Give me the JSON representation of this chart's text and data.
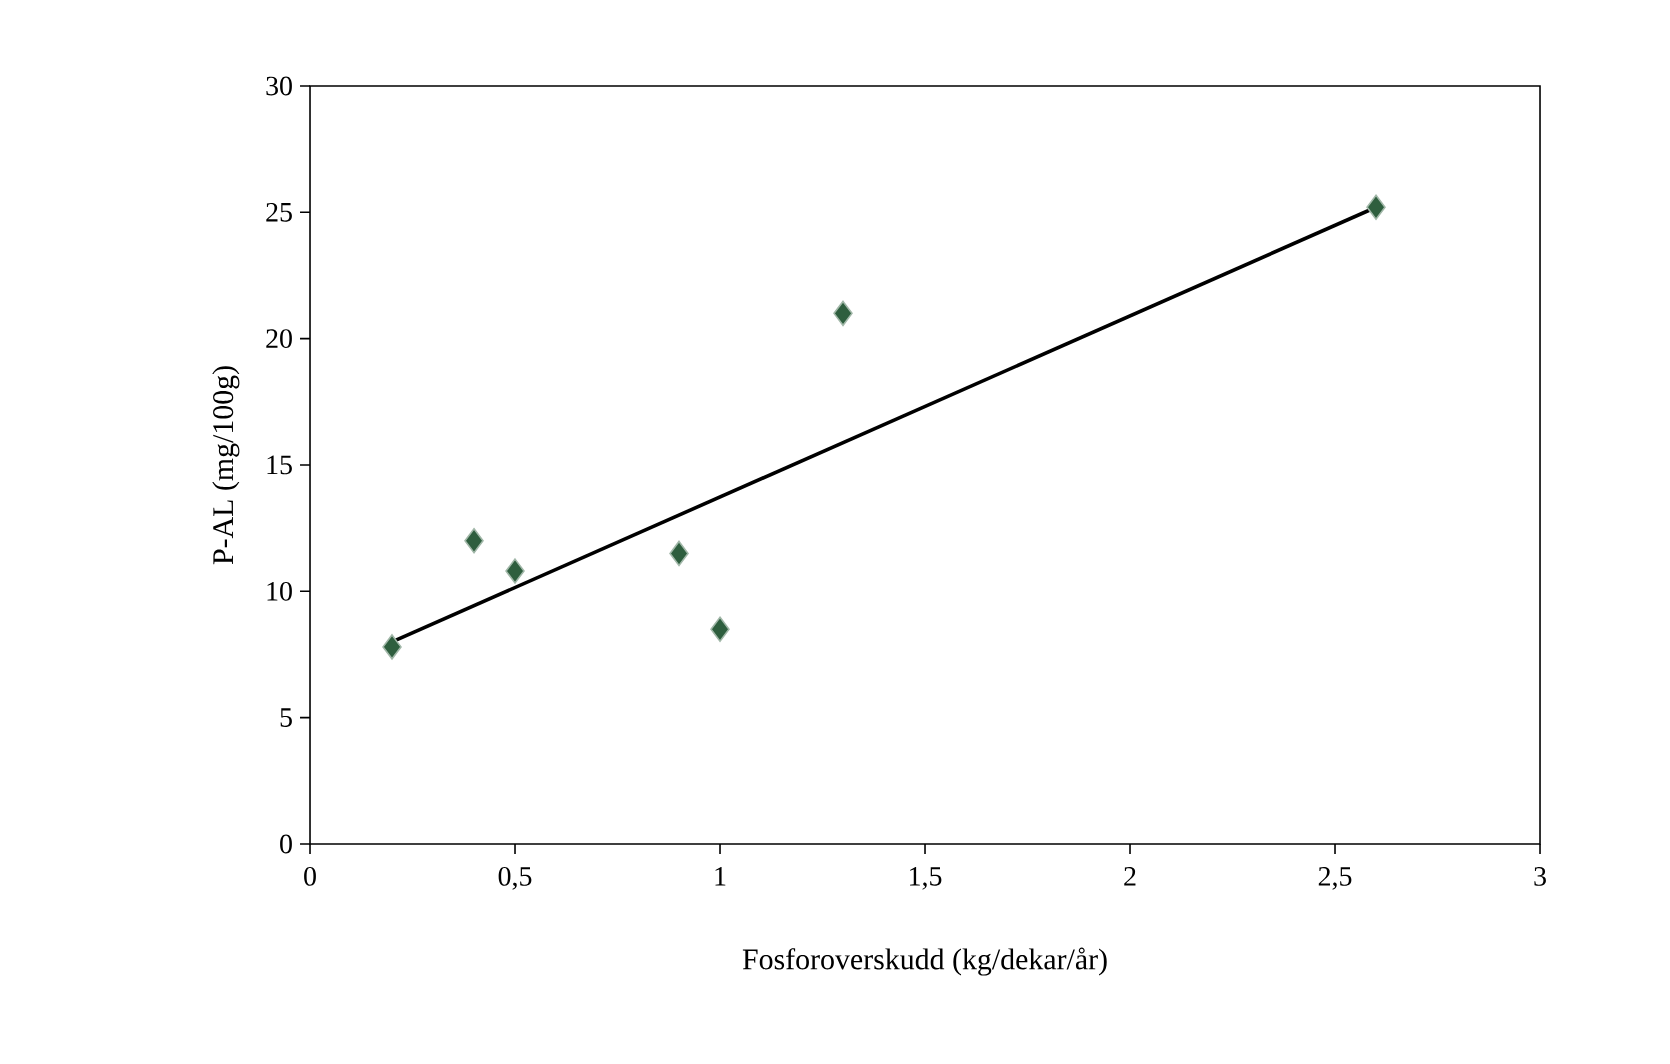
{
  "chart_data": {
    "type": "scatter",
    "xlabel": "Fosforoverskudd (kg/dekar/år)",
    "ylabel": "P-AL (mg/100g)",
    "xlim": [
      0,
      3
    ],
    "ylim": [
      0,
      30
    ],
    "xticks": [
      0,
      {
        "value": 0.5,
        "label": "0,5"
      },
      1,
      {
        "value": 1.5,
        "label": "1,5"
      },
      2,
      {
        "value": 2.5,
        "label": "2,5"
      },
      3
    ],
    "yticks": [
      0,
      5,
      10,
      15,
      20,
      25,
      30
    ],
    "grid": false,
    "marker": "diamond",
    "series": [
      {
        "color": "#2e5e3e",
        "x": [
          0.2,
          0.4,
          0.5,
          0.9,
          1.0,
          1.3,
          2.6
        ],
        "values": [
          7.8,
          12.0,
          10.8,
          11.5,
          8.5,
          21.0,
          25.2
        ]
      },
      {
        "type": "line",
        "color": "#000000",
        "x": [
          0.2,
          2.6
        ],
        "values": [
          8.0,
          25.2
        ],
        "marker": "none"
      }
    ]
  }
}
